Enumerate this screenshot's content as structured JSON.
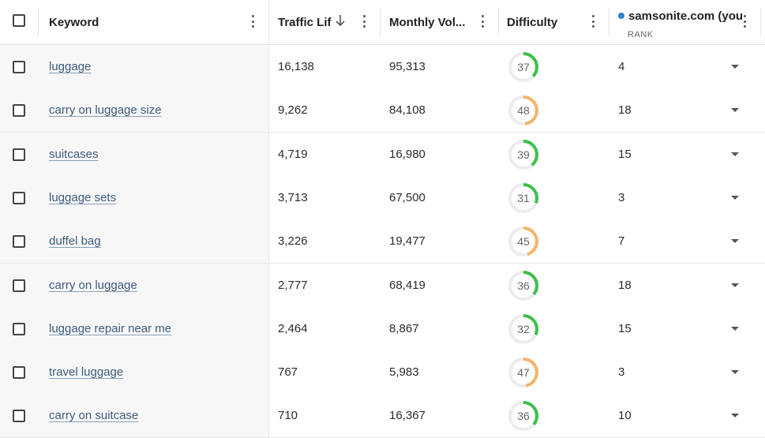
{
  "header": {
    "keyword": "Keyword",
    "traffic": "Traffic Lif",
    "volume": "Monthly Vol...",
    "difficulty": "Difficulty",
    "domain": "samsonite.com (you",
    "rank_sub": "RANK",
    "domain_dot_color": "#2f80d1"
  },
  "colors": {
    "green": "#3dbf4a",
    "orange": "#f5b36b",
    "ring_bg": "#ececec"
  },
  "rows": [
    {
      "keyword": "luggage",
      "traffic": "16,138",
      "volume": "95,313",
      "difficulty": "37",
      "difficulty_level": "easy",
      "rank": "4"
    },
    {
      "keyword": "carry on luggage size",
      "traffic": "9,262",
      "volume": "84,108",
      "difficulty": "48",
      "difficulty_level": "medium",
      "rank": "18"
    },
    {
      "keyword": "suitcases",
      "traffic": "4,719",
      "volume": "16,980",
      "difficulty": "39",
      "difficulty_level": "easy",
      "rank": "15"
    },
    {
      "keyword": "luggage sets",
      "traffic": "3,713",
      "volume": "67,500",
      "difficulty": "31",
      "difficulty_level": "easy",
      "rank": "3"
    },
    {
      "keyword": "duffel bag",
      "traffic": "3,226",
      "volume": "19,477",
      "difficulty": "45",
      "difficulty_level": "medium",
      "rank": "7"
    },
    {
      "keyword": "carry on luggage",
      "traffic": "2,777",
      "volume": "68,419",
      "difficulty": "36",
      "difficulty_level": "easy",
      "rank": "18"
    },
    {
      "keyword": "luggage repair near me",
      "traffic": "2,464",
      "volume": "8,867",
      "difficulty": "32",
      "difficulty_level": "easy",
      "rank": "15"
    },
    {
      "keyword": "travel luggage",
      "traffic": "767",
      "volume": "5,983",
      "difficulty": "47",
      "difficulty_level": "medium",
      "rank": "3"
    },
    {
      "keyword": "carry on suitcase",
      "traffic": "710",
      "volume": "16,367",
      "difficulty": "36",
      "difficulty_level": "easy",
      "rank": "10"
    }
  ]
}
